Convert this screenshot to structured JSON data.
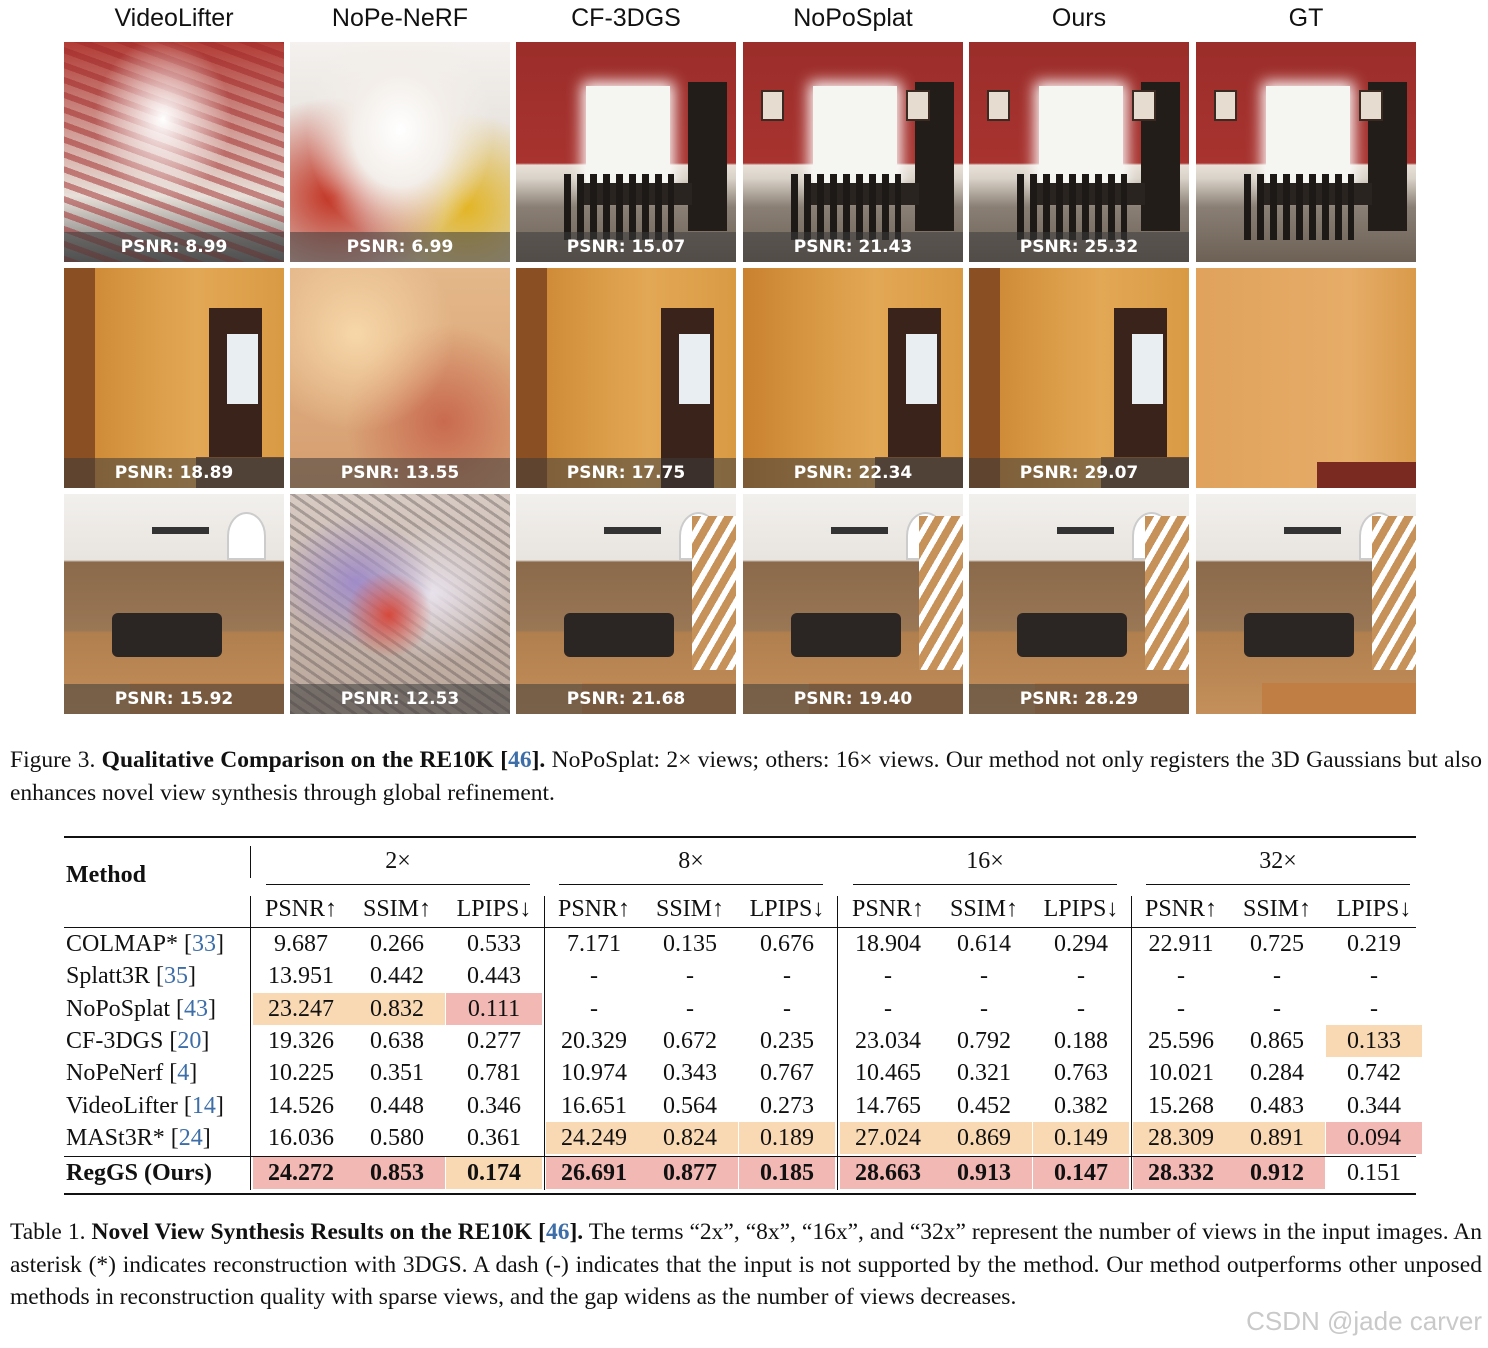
{
  "figure": {
    "columns": [
      "VideoLifter",
      "NoPe-NeRF",
      "CF-3DGS",
      "NoPoSplat",
      "Ours",
      "GT"
    ],
    "rows": [
      {
        "psnr": [
          "PSNR: 8.99",
          "PSNR: 6.99",
          "PSNR: 15.07",
          "PSNR: 21.43",
          "PSNR: 25.32",
          ""
        ]
      },
      {
        "psnr": [
          "PSNR: 18.89",
          "PSNR: 13.55",
          "PSNR: 17.75",
          "PSNR: 22.34",
          "PSNR: 29.07",
          ""
        ]
      },
      {
        "psnr": [
          "PSNR: 15.92",
          "PSNR: 12.53",
          "PSNR: 21.68",
          "PSNR: 19.40",
          "PSNR: 28.29",
          ""
        ]
      }
    ],
    "caption": {
      "prefix": "Figure 3. ",
      "title": "Qualitative Comparison on the RE10K [",
      "ref": "46",
      "title_end": "].",
      "body": " NoPoSplat: 2× views; others: 16× views. Our method not only registers the 3D Gaussians but also enhances novel view synthesis through global refinement."
    }
  },
  "table": {
    "method_header": "Method",
    "groups": [
      "2×",
      "8×",
      "16×",
      "32×"
    ],
    "metrics": [
      "PSNR↑",
      "SSIM↑",
      "LPIPS↓"
    ],
    "rows": [
      {
        "name": "COLMAP* [",
        "ref": "33",
        "end": "]",
        "values": [
          "9.687",
          "0.266",
          "0.533",
          "7.171",
          "0.135",
          "0.676",
          "18.904",
          "0.614",
          "0.294",
          "22.911",
          "0.725",
          "0.219"
        ]
      },
      {
        "name": "Splatt3R [",
        "ref": "35",
        "end": "]",
        "values": [
          "13.951",
          "0.442",
          "0.443",
          "-",
          "-",
          "-",
          "-",
          "-",
          "-",
          "-",
          "-",
          "-"
        ]
      },
      {
        "name": "NoPoSplat [",
        "ref": "43",
        "end": "]",
        "values": [
          "23.247",
          "0.832",
          "0.111",
          "-",
          "-",
          "-",
          "-",
          "-",
          "-",
          "-",
          "-",
          "-"
        ]
      },
      {
        "name": "CF-3DGS [",
        "ref": "20",
        "end": "]",
        "values": [
          "19.326",
          "0.638",
          "0.277",
          "20.329",
          "0.672",
          "0.235",
          "23.034",
          "0.792",
          "0.188",
          "25.596",
          "0.865",
          "0.133"
        ]
      },
      {
        "name": "NoPeNerf [",
        "ref": "4",
        "end": "]",
        "values": [
          "10.225",
          "0.351",
          "0.781",
          "10.974",
          "0.343",
          "0.767",
          "10.465",
          "0.321",
          "0.763",
          "10.021",
          "0.284",
          "0.742"
        ]
      },
      {
        "name": "VideoLifter [",
        "ref": "14",
        "end": "]",
        "values": [
          "14.526",
          "0.448",
          "0.346",
          "16.651",
          "0.564",
          "0.273",
          "14.765",
          "0.452",
          "0.382",
          "15.268",
          "0.483",
          "0.344"
        ]
      },
      {
        "name": "MASt3R* [",
        "ref": "24",
        "end": "]",
        "values": [
          "16.036",
          "0.580",
          "0.361",
          "24.249",
          "0.824",
          "0.189",
          "27.024",
          "0.869",
          "0.149",
          "28.309",
          "0.891",
          "0.094"
        ]
      },
      {
        "name": "RegGS (Ours)",
        "ref": "",
        "end": "",
        "values": [
          "24.272",
          "0.853",
          "0.174",
          "26.691",
          "0.877",
          "0.185",
          "28.663",
          "0.913",
          "0.147",
          "28.332",
          "0.912",
          "0.151"
        ]
      }
    ],
    "caption": {
      "prefix": "Table 1. ",
      "title": "Novel View Synthesis Results on the RE10K [",
      "ref": "46",
      "title_end": "].",
      "body": " The terms “2x”, “8x”, “16x”, and “32x” represent the number of views in the input images. An asterisk (*) indicates reconstruction with 3DGS. A dash (-) indicates that the input is not supported by the method. Our method outperforms other unposed methods in reconstruction quality with sparse views, and the gap widens as the number of views decreases."
    }
  },
  "watermark": "CSDN @jade carver"
}
